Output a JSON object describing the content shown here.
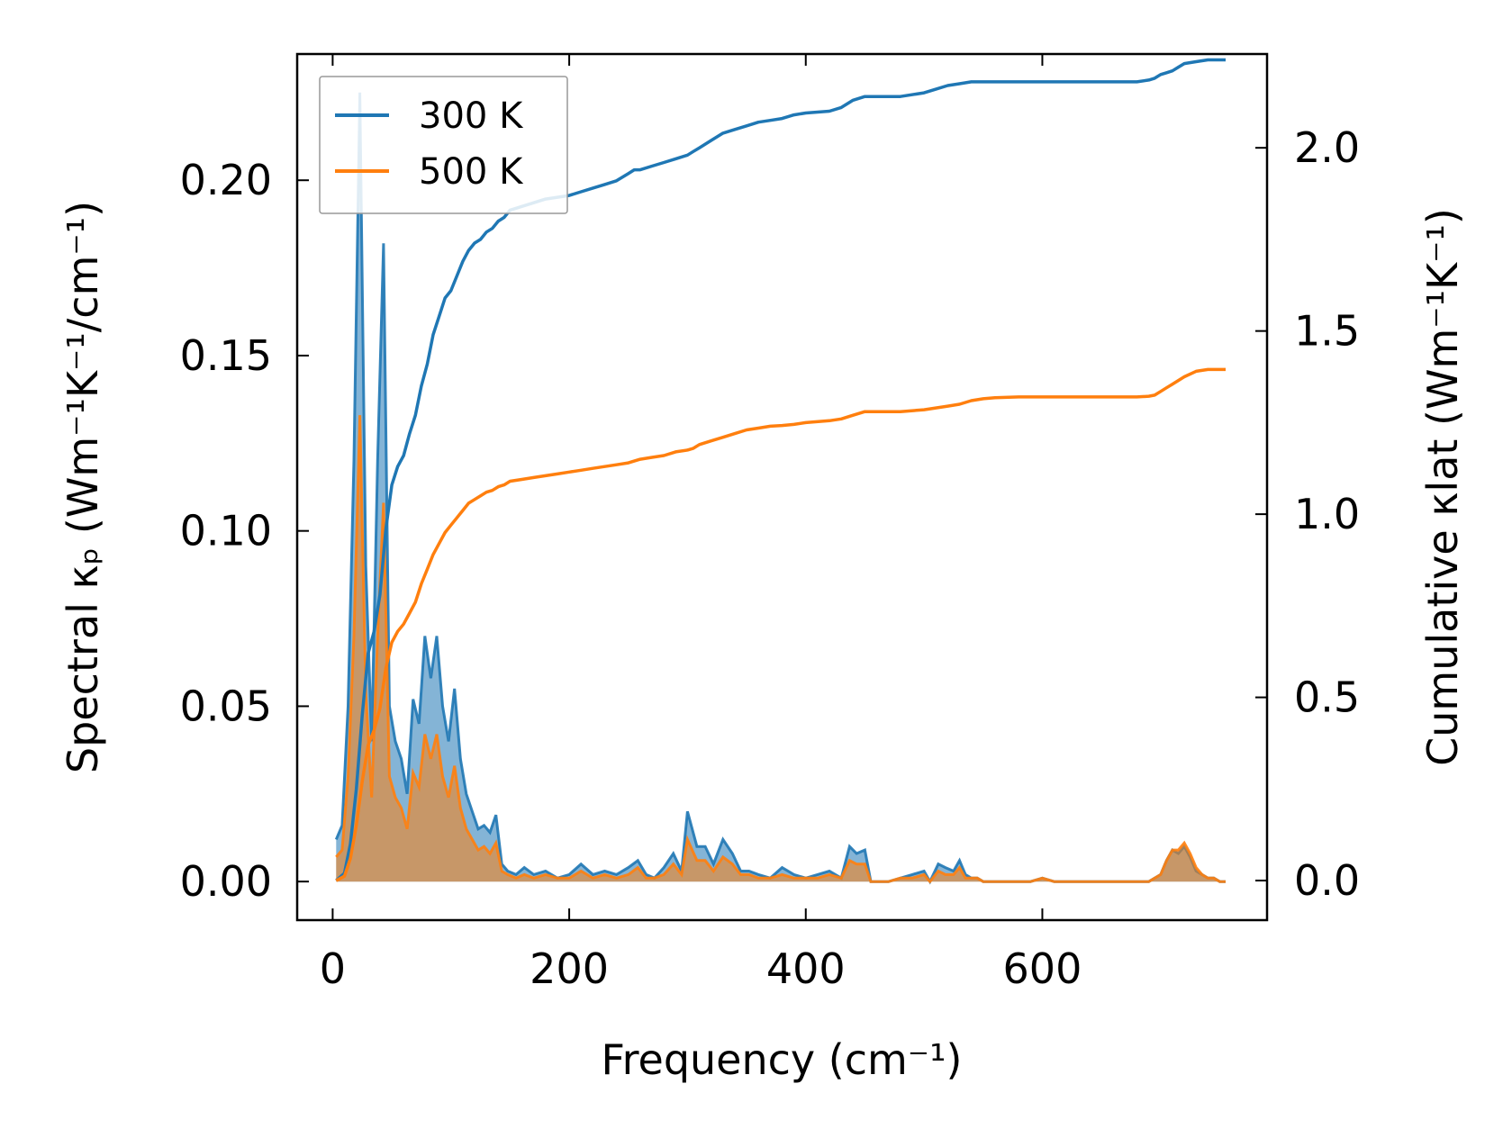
{
  "chart_data": {
    "type": "line",
    "title": "",
    "xlabel": "Frequency (cm⁻¹)",
    "ylabel": "Spectral κₚ (Wm⁻¹K⁻¹/cm⁻¹)",
    "y2label": "Cumulative κlat (Wm⁻¹K⁻¹)",
    "xlim": [
      -30,
      790
    ],
    "ylim": [
      -0.011,
      0.236
    ],
    "y2lim": [
      -0.108,
      2.256
    ],
    "x_ticks": [
      0,
      200,
      400,
      600
    ],
    "y_ticks": [
      0.0,
      0.05,
      0.1,
      0.15,
      0.2
    ],
    "y2_ticks": [
      0.0,
      0.5,
      1.0,
      1.5,
      2.0
    ],
    "x_tick_labels": [
      "0",
      "200",
      "400",
      "600"
    ],
    "y_tick_labels": [
      "0.00",
      "0.05",
      "0.10",
      "0.15",
      "0.20"
    ],
    "y2_tick_labels": [
      "0.0",
      "0.5",
      "1.0",
      "1.5",
      "2.0"
    ],
    "grid": false,
    "legend_position": "top-left",
    "colors": {
      "300K": "#1f77b4",
      "500K": "#ff7f0e"
    },
    "series": [
      {
        "name": "300 K",
        "axis": "left",
        "kind": "spectral-area",
        "x": [
          3,
          8,
          13,
          18,
          23,
          28,
          33,
          38,
          43,
          48,
          53,
          58,
          63,
          68,
          73,
          78,
          83,
          88,
          93,
          98,
          103,
          108,
          113,
          118,
          123,
          128,
          133,
          138,
          143,
          148,
          155,
          162,
          170,
          180,
          190,
          200,
          210,
          220,
          230,
          240,
          250,
          258,
          265,
          272,
          280,
          288,
          295,
          300,
          308,
          315,
          322,
          330,
          338,
          345,
          352,
          360,
          370,
          380,
          390,
          400,
          410,
          420,
          430,
          437,
          443,
          450,
          455,
          460,
          470,
          480,
          490,
          500,
          505,
          512,
          518,
          525,
          530,
          535,
          540,
          545,
          550,
          560,
          570,
          580,
          590,
          600,
          610,
          620,
          630,
          640,
          650,
          660,
          670,
          680,
          690,
          700,
          705,
          710,
          715,
          720,
          725,
          730,
          735,
          740,
          745,
          750,
          755
        ],
        "values": [
          0.012,
          0.016,
          0.05,
          0.12,
          0.225,
          0.09,
          0.04,
          0.12,
          0.182,
          0.05,
          0.04,
          0.035,
          0.025,
          0.052,
          0.045,
          0.07,
          0.058,
          0.07,
          0.05,
          0.04,
          0.055,
          0.035,
          0.025,
          0.02,
          0.015,
          0.016,
          0.014,
          0.019,
          0.005,
          0.003,
          0.002,
          0.004,
          0.002,
          0.003,
          0.001,
          0.002,
          0.005,
          0.002,
          0.003,
          0.002,
          0.004,
          0.006,
          0.002,
          0.001,
          0.004,
          0.008,
          0.003,
          0.02,
          0.01,
          0.01,
          0.005,
          0.012,
          0.008,
          0.003,
          0.003,
          0.002,
          0.001,
          0.004,
          0.002,
          0.001,
          0.002,
          0.003,
          0.001,
          0.01,
          0.008,
          0.009,
          0.0,
          0.0,
          0.0,
          0.001,
          0.002,
          0.003,
          0.0,
          0.005,
          0.004,
          0.003,
          0.006,
          0.002,
          0.001,
          0.001,
          0.0,
          0.0,
          0.0,
          0.0,
          0.0,
          0.001,
          0.0,
          0.0,
          0.0,
          0.0,
          0.0,
          0.0,
          0.0,
          0.0,
          0.0,
          0.002,
          0.006,
          0.009,
          0.008,
          0.01,
          0.007,
          0.003,
          0.002,
          0.001,
          0.001,
          0.0,
          0.0
        ]
      },
      {
        "name": "500 K",
        "axis": "left",
        "kind": "spectral-area",
        "x": [
          3,
          8,
          13,
          18,
          23,
          28,
          33,
          38,
          43,
          48,
          53,
          58,
          63,
          68,
          73,
          78,
          83,
          88,
          93,
          98,
          103,
          108,
          113,
          118,
          123,
          128,
          133,
          138,
          143,
          148,
          155,
          162,
          170,
          180,
          190,
          200,
          210,
          220,
          230,
          240,
          250,
          258,
          265,
          272,
          280,
          288,
          295,
          300,
          308,
          315,
          322,
          330,
          338,
          345,
          352,
          360,
          370,
          380,
          390,
          400,
          410,
          420,
          430,
          437,
          443,
          450,
          455,
          460,
          470,
          480,
          490,
          500,
          505,
          512,
          518,
          525,
          530,
          535,
          540,
          545,
          550,
          560,
          570,
          580,
          590,
          600,
          610,
          620,
          630,
          640,
          650,
          660,
          670,
          680,
          690,
          700,
          705,
          710,
          715,
          720,
          725,
          730,
          735,
          740,
          745,
          750,
          755
        ],
        "values": [
          0.007,
          0.009,
          0.03,
          0.07,
          0.133,
          0.054,
          0.024,
          0.07,
          0.108,
          0.03,
          0.024,
          0.021,
          0.015,
          0.031,
          0.027,
          0.042,
          0.035,
          0.042,
          0.03,
          0.024,
          0.033,
          0.021,
          0.015,
          0.012,
          0.009,
          0.01,
          0.008,
          0.011,
          0.003,
          0.002,
          0.001,
          0.002,
          0.001,
          0.002,
          0.001,
          0.001,
          0.003,
          0.001,
          0.002,
          0.001,
          0.002,
          0.004,
          0.001,
          0.001,
          0.002,
          0.005,
          0.002,
          0.012,
          0.006,
          0.006,
          0.003,
          0.007,
          0.005,
          0.002,
          0.002,
          0.001,
          0.001,
          0.002,
          0.001,
          0.001,
          0.001,
          0.002,
          0.001,
          0.006,
          0.005,
          0.005,
          0.0,
          0.0,
          0.0,
          0.001,
          0.001,
          0.002,
          0.0,
          0.003,
          0.002,
          0.002,
          0.004,
          0.001,
          0.001,
          0.001,
          0.0,
          0.0,
          0.0,
          0.0,
          0.0,
          0.001,
          0.0,
          0.0,
          0.0,
          0.0,
          0.0,
          0.0,
          0.0,
          0.0,
          0.0,
          0.002,
          0.006,
          0.009,
          0.009,
          0.011,
          0.008,
          0.004,
          0.002,
          0.001,
          0.001,
          0.0,
          0.0
        ]
      },
      {
        "name": "300 K",
        "axis": "right",
        "kind": "cumulative",
        "x": [
          3,
          10,
          15,
          20,
          25,
          30,
          35,
          40,
          45,
          50,
          55,
          60,
          65,
          70,
          75,
          80,
          85,
          90,
          95,
          100,
          105,
          110,
          115,
          120,
          125,
          130,
          135,
          140,
          145,
          150,
          160,
          170,
          180,
          190,
          200,
          210,
          220,
          230,
          240,
          250,
          255,
          260,
          270,
          280,
          290,
          300,
          305,
          310,
          320,
          330,
          340,
          350,
          360,
          370,
          380,
          390,
          400,
          420,
          430,
          440,
          450,
          460,
          480,
          500,
          510,
          520,
          530,
          540,
          550,
          560,
          580,
          600,
          620,
          640,
          660,
          680,
          690,
          695,
          700,
          705,
          710,
          715,
          720,
          730,
          740,
          750,
          755
        ],
        "values": [
          0.0,
          0.02,
          0.1,
          0.25,
          0.45,
          0.62,
          0.68,
          0.78,
          0.96,
          1.08,
          1.13,
          1.16,
          1.22,
          1.27,
          1.35,
          1.41,
          1.49,
          1.54,
          1.59,
          1.61,
          1.65,
          1.69,
          1.72,
          1.74,
          1.75,
          1.77,
          1.78,
          1.8,
          1.81,
          1.83,
          1.84,
          1.85,
          1.86,
          1.865,
          1.87,
          1.88,
          1.89,
          1.9,
          1.91,
          1.93,
          1.94,
          1.94,
          1.95,
          1.96,
          1.97,
          1.98,
          1.99,
          2.0,
          2.02,
          2.04,
          2.05,
          2.06,
          2.07,
          2.075,
          2.08,
          2.09,
          2.095,
          2.1,
          2.11,
          2.13,
          2.14,
          2.14,
          2.14,
          2.15,
          2.16,
          2.17,
          2.175,
          2.18,
          2.18,
          2.18,
          2.18,
          2.18,
          2.18,
          2.18,
          2.18,
          2.18,
          2.185,
          2.19,
          2.2,
          2.205,
          2.21,
          2.22,
          2.23,
          2.235,
          2.24,
          2.24,
          2.24
        ]
      },
      {
        "name": "500 K",
        "axis": "right",
        "kind": "cumulative",
        "x": [
          3,
          10,
          15,
          20,
          25,
          30,
          35,
          40,
          45,
          50,
          55,
          60,
          65,
          70,
          75,
          80,
          85,
          90,
          95,
          100,
          105,
          110,
          115,
          120,
          125,
          130,
          135,
          140,
          145,
          150,
          160,
          170,
          180,
          190,
          200,
          210,
          220,
          230,
          240,
          250,
          255,
          260,
          270,
          280,
          290,
          300,
          305,
          310,
          320,
          330,
          340,
          350,
          360,
          370,
          380,
          390,
          400,
          420,
          430,
          440,
          450,
          460,
          480,
          500,
          510,
          520,
          530,
          540,
          550,
          560,
          580,
          600,
          620,
          640,
          660,
          680,
          690,
          695,
          700,
          705,
          710,
          715,
          720,
          730,
          740,
          750,
          755
        ],
        "values": [
          0.0,
          0.012,
          0.06,
          0.15,
          0.27,
          0.37,
          0.41,
          0.47,
          0.58,
          0.65,
          0.68,
          0.7,
          0.73,
          0.76,
          0.81,
          0.85,
          0.89,
          0.92,
          0.95,
          0.97,
          0.99,
          1.01,
          1.03,
          1.04,
          1.05,
          1.06,
          1.065,
          1.075,
          1.08,
          1.09,
          1.095,
          1.1,
          1.105,
          1.11,
          1.115,
          1.12,
          1.125,
          1.13,
          1.135,
          1.14,
          1.145,
          1.15,
          1.155,
          1.16,
          1.17,
          1.175,
          1.18,
          1.19,
          1.2,
          1.21,
          1.22,
          1.23,
          1.235,
          1.24,
          1.242,
          1.245,
          1.25,
          1.255,
          1.26,
          1.27,
          1.28,
          1.28,
          1.28,
          1.285,
          1.29,
          1.295,
          1.3,
          1.31,
          1.315,
          1.318,
          1.32,
          1.32,
          1.32,
          1.32,
          1.32,
          1.32,
          1.322,
          1.325,
          1.335,
          1.345,
          1.355,
          1.365,
          1.375,
          1.39,
          1.395,
          1.395,
          1.395
        ]
      }
    ]
  }
}
